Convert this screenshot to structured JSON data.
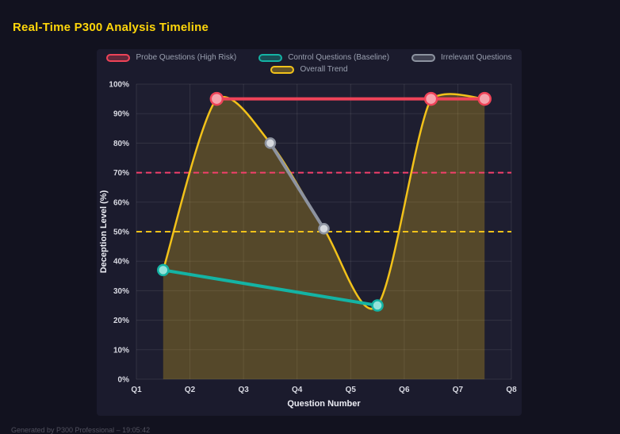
{
  "page": {
    "title": "Real-Time P300 Analysis Timeline",
    "footer": "Generated by P300 Professional – 19:05:42"
  },
  "chart_data": {
    "type": "line",
    "title": "Real-Time P300 Analysis Timeline",
    "xlabel": "Question Number",
    "ylabel": "Deception Level (%)",
    "x_tick_labels": [
      "Q1",
      "Q2",
      "Q3",
      "Q4",
      "Q5",
      "Q6",
      "Q7",
      "Q8"
    ],
    "x_tick_values": [
      1,
      2,
      3,
      4,
      5,
      6,
      7,
      8
    ],
    "xlim": [
      1,
      8
    ],
    "ylim": [
      0,
      100
    ],
    "y_tick_step": 10,
    "y_tick_suffix": "%",
    "grid": true,
    "legend_position": "top",
    "series": [
      {
        "id": "probe",
        "name": "Probe Questions (High Risk)",
        "color": "#ef4358",
        "point_fill": "#f5a3ad",
        "x": [
          2.5,
          6.5,
          7.5
        ],
        "y": [
          95,
          95,
          95
        ],
        "line_width": 4,
        "point_radius": 7.5
      },
      {
        "id": "control",
        "name": "Control Questions (Baseline)",
        "color": "#14b3a4",
        "point_fill": "#93e2da",
        "x": [
          1.5,
          5.5
        ],
        "y": [
          37,
          25
        ],
        "line_width": 4,
        "point_radius": 6.5
      },
      {
        "id": "irrelevant",
        "name": "Irrelevant Questions",
        "color": "#8d93a0",
        "point_fill": "#d6d9de",
        "x": [
          3.5,
          4.5
        ],
        "y": [
          80,
          51
        ],
        "line_width": 4,
        "point_radius": 6
      },
      {
        "id": "trend",
        "name": "Overall Trend",
        "color": "#f2c21a",
        "fill": "rgba(242,194,26,0.26)",
        "smooth": true,
        "x": [
          1.5,
          2.5,
          3.5,
          4.5,
          5.5,
          6.5,
          7.5
        ],
        "y": [
          37,
          95,
          80,
          51,
          25,
          95,
          95
        ],
        "line_width": 2.5,
        "point_radius": 0
      }
    ],
    "thresholds": [
      {
        "value": 70,
        "color": "#f43f6b",
        "style": "dashed"
      },
      {
        "value": 50,
        "color": "#f2c21a",
        "style": "dashed"
      }
    ]
  }
}
